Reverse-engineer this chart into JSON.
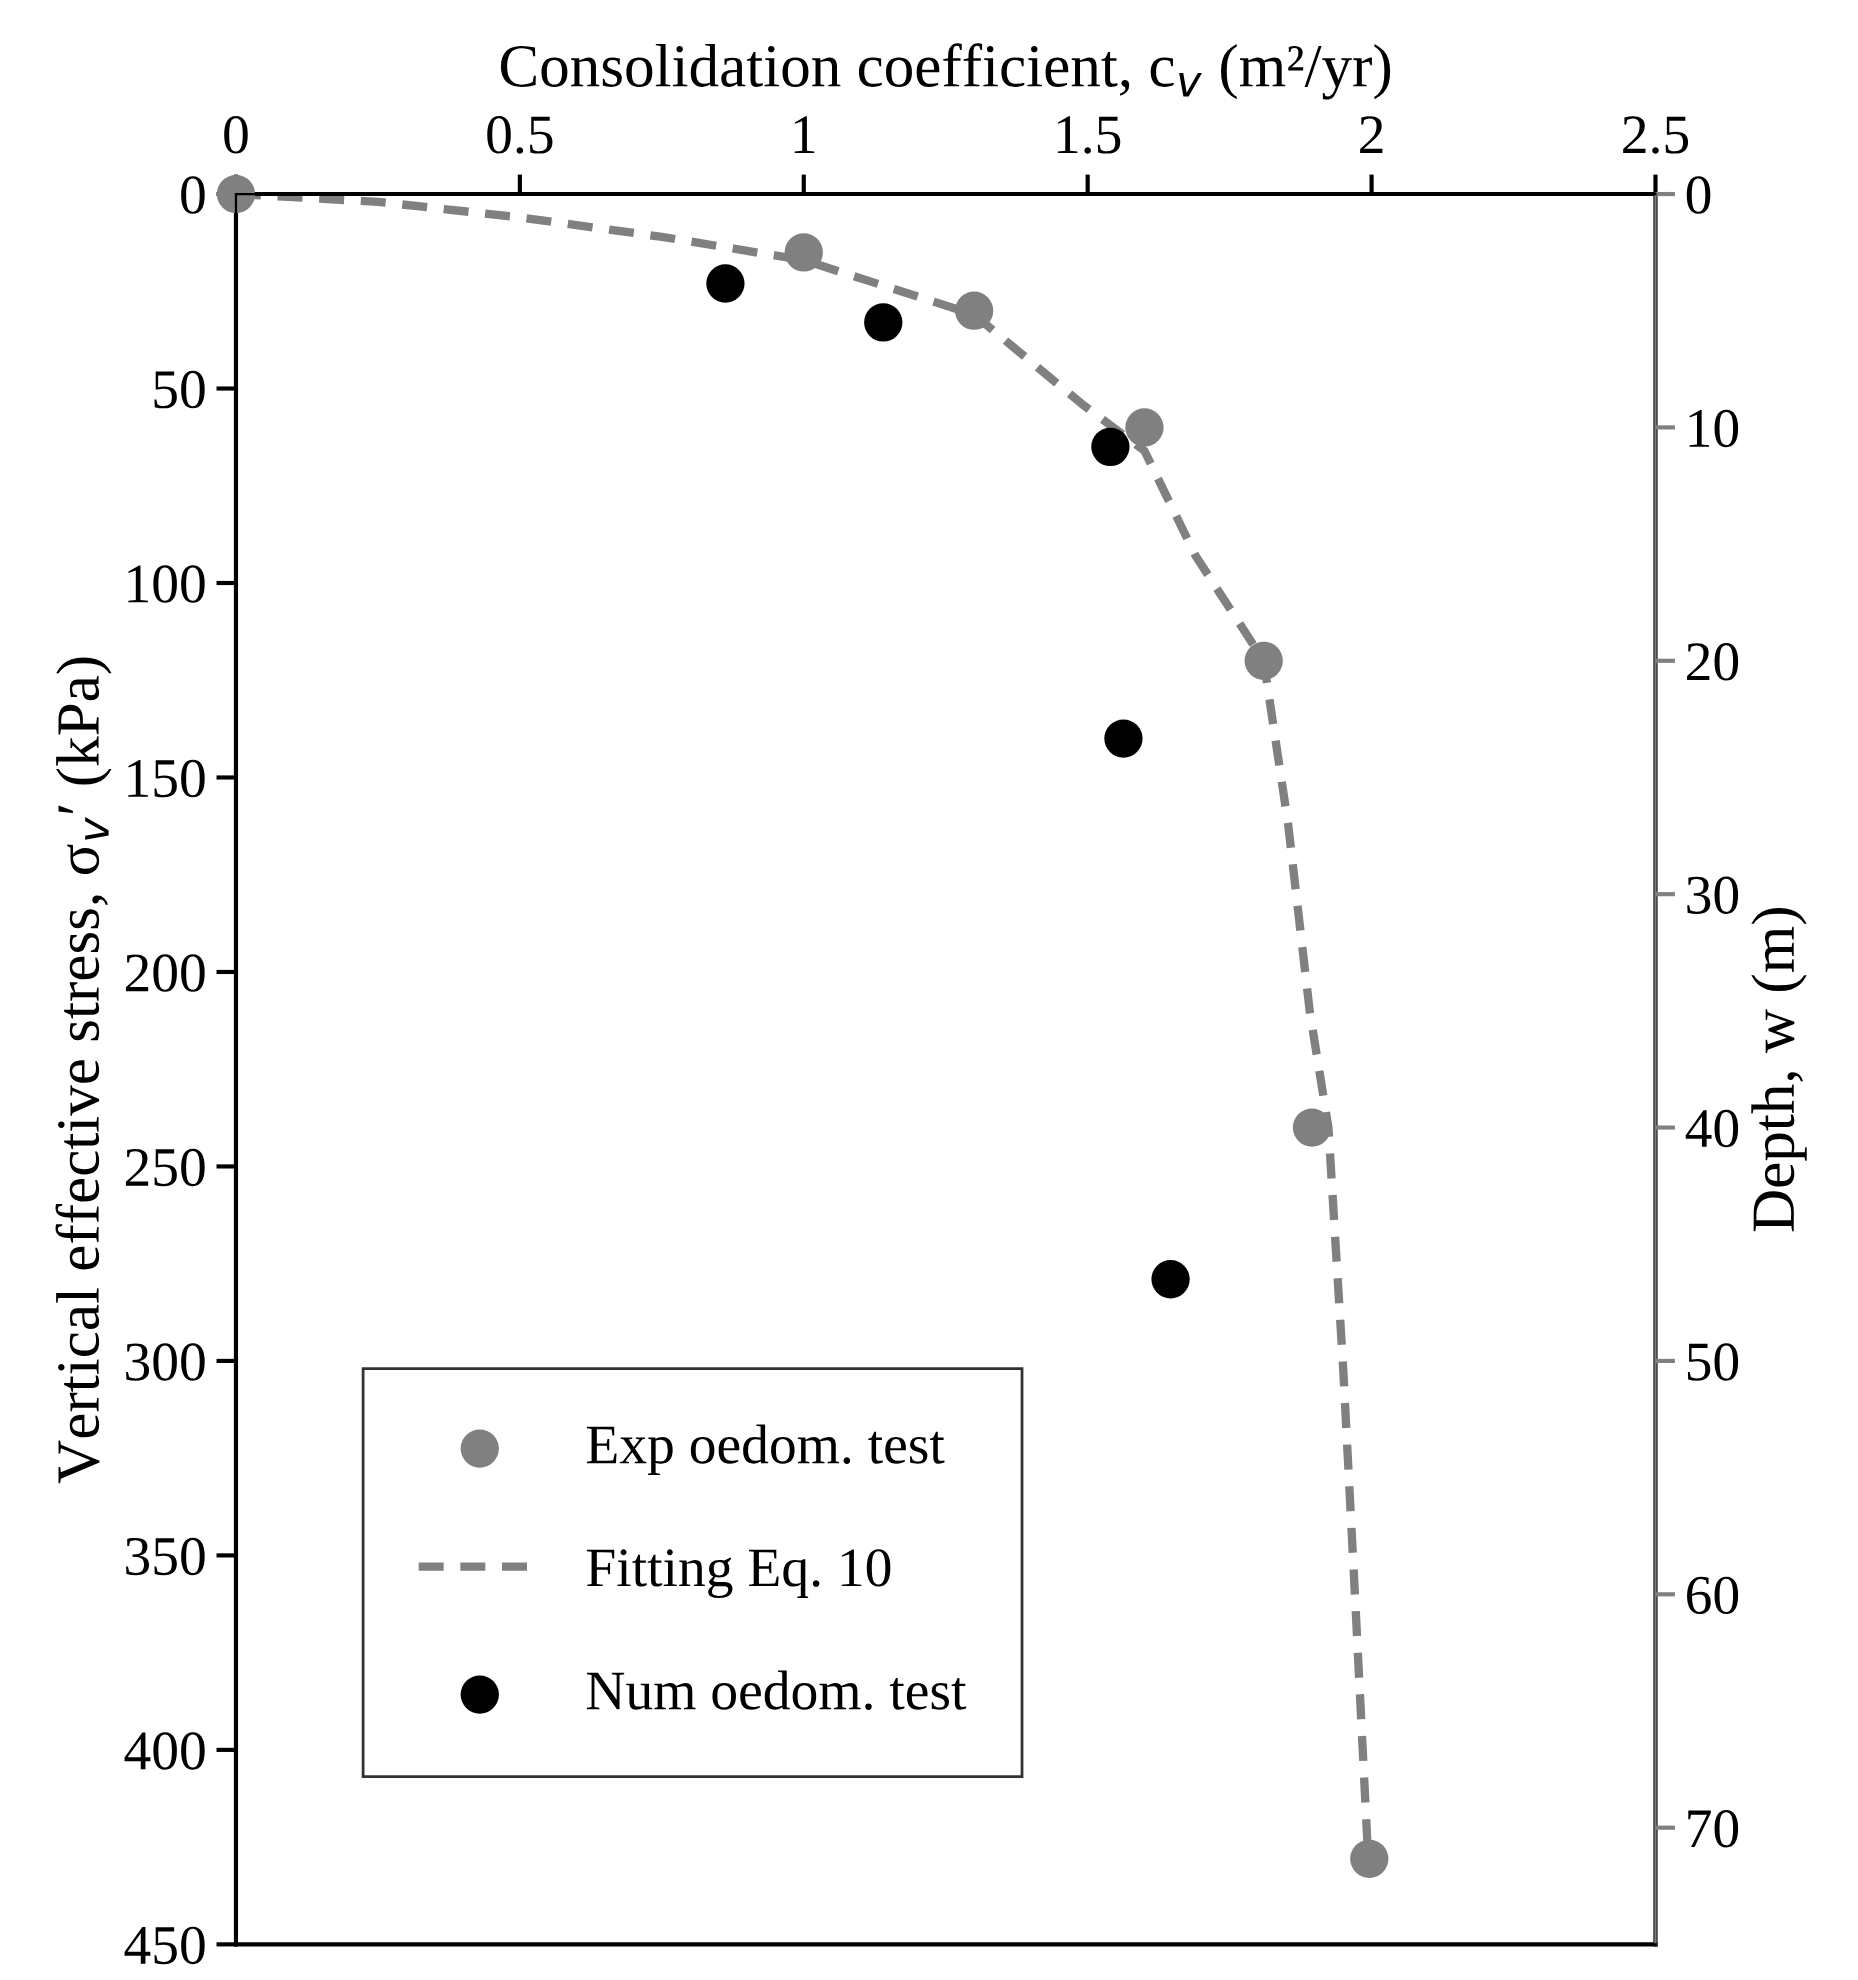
{
  "chart_data": {
    "type": "scatter",
    "xlabel": "Consolidation coefficient, c$_{v}$ (m²/yr)",
    "ylabel": "Vertical effective stress, σ$_{v}$′ (kPa)",
    "y2label": "Depth, w (m)",
    "xlim": [
      0,
      2.5
    ],
    "xticks": [
      0,
      0.5,
      1,
      1.5,
      2,
      2.5
    ],
    "ylim": [
      450,
      0
    ],
    "yticks": [
      0,
      50,
      100,
      150,
      200,
      250,
      300,
      350,
      400,
      450
    ],
    "y2lim": [
      75,
      0
    ],
    "y2ticks": [
      0,
      10,
      20,
      30,
      40,
      50,
      60,
      70
    ],
    "grid": false,
    "legend": "bottom left",
    "series": [
      {
        "name": "Exp oedom. test",
        "marker": "circle",
        "color": "#808080",
        "x": [
          0,
          1.0,
          1.3,
          1.6,
          1.81,
          1.895,
          1.996
        ],
        "values": [
          0,
          15,
          30,
          60,
          120,
          240,
          428
        ]
      },
      {
        "name": "Fitting Eq. 10",
        "type": "line",
        "marker": "none",
        "line_style": "dashed",
        "color": "#808080",
        "x": [
          0,
          0.25,
          0.5,
          0.75,
          1.0,
          1.3,
          1.49,
          1.6,
          1.69,
          1.81,
          1.853,
          1.891,
          1.924,
          1.95,
          1.971,
          1.993
        ],
        "values": [
          0,
          2,
          6,
          11,
          17,
          31,
          54,
          66,
          93,
          120,
          162,
          210,
          240,
          302,
          361,
          425
        ]
      },
      {
        "name": "Num oedom. test",
        "marker": "circle",
        "color": "#000000",
        "x": [
          0.862,
          1.14,
          1.54,
          1.563,
          1.646
        ],
        "values": [
          23,
          33,
          65,
          140,
          279
        ]
      }
    ]
  }
}
